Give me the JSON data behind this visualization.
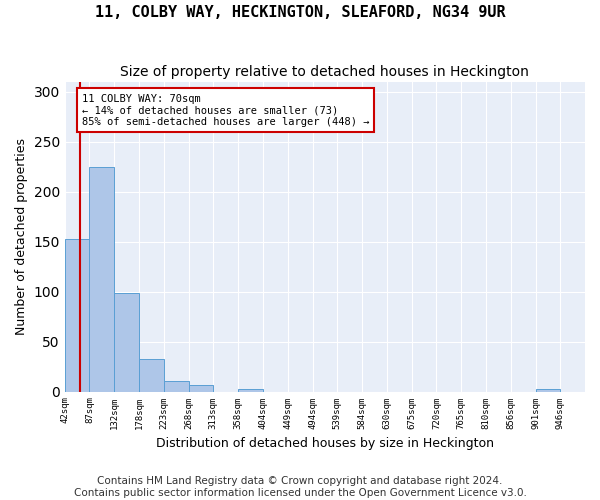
{
  "title": "11, COLBY WAY, HECKINGTON, SLEAFORD, NG34 9UR",
  "subtitle": "Size of property relative to detached houses in Heckington",
  "xlabel": "Distribution of detached houses by size in Heckington",
  "ylabel": "Number of detached properties",
  "bar_color": "#aec6e8",
  "bar_edge_color": "#5a9fd4",
  "property_line_color": "#cc0000",
  "property_size": 70,
  "annotation_text": "11 COLBY WAY: 70sqm\n← 14% of detached houses are smaller (73)\n85% of semi-detached houses are larger (448) →",
  "annotation_box_color": "white",
  "annotation_box_edge_color": "#cc0000",
  "bin_edges": [
    42,
    87,
    132,
    178,
    223,
    268,
    313,
    358,
    404,
    449,
    494,
    539,
    584,
    630,
    675,
    720,
    765,
    810,
    856,
    901,
    946,
    991
  ],
  "bin_labels": [
    "42sqm",
    "87sqm",
    "132sqm",
    "178sqm",
    "223sqm",
    "268sqm",
    "313sqm",
    "358sqm",
    "404sqm",
    "449sqm",
    "494sqm",
    "539sqm",
    "584sqm",
    "630sqm",
    "675sqm",
    "720sqm",
    "765sqm",
    "810sqm",
    "856sqm",
    "901sqm",
    "946sqm"
  ],
  "counts": [
    153,
    225,
    99,
    33,
    11,
    7,
    0,
    3,
    0,
    0,
    0,
    0,
    0,
    0,
    0,
    0,
    0,
    0,
    0,
    3,
    0
  ],
  "ylim": [
    0,
    310
  ],
  "yticks": [
    0,
    50,
    100,
    150,
    200,
    250,
    300
  ],
  "background_color": "#e8eef8",
  "footer_text": "Contains HM Land Registry data © Crown copyright and database right 2024.\nContains public sector information licensed under the Open Government Licence v3.0.",
  "title_fontsize": 11,
  "subtitle_fontsize": 10,
  "xlabel_fontsize": 9,
  "ylabel_fontsize": 9,
  "footer_fontsize": 7.5
}
